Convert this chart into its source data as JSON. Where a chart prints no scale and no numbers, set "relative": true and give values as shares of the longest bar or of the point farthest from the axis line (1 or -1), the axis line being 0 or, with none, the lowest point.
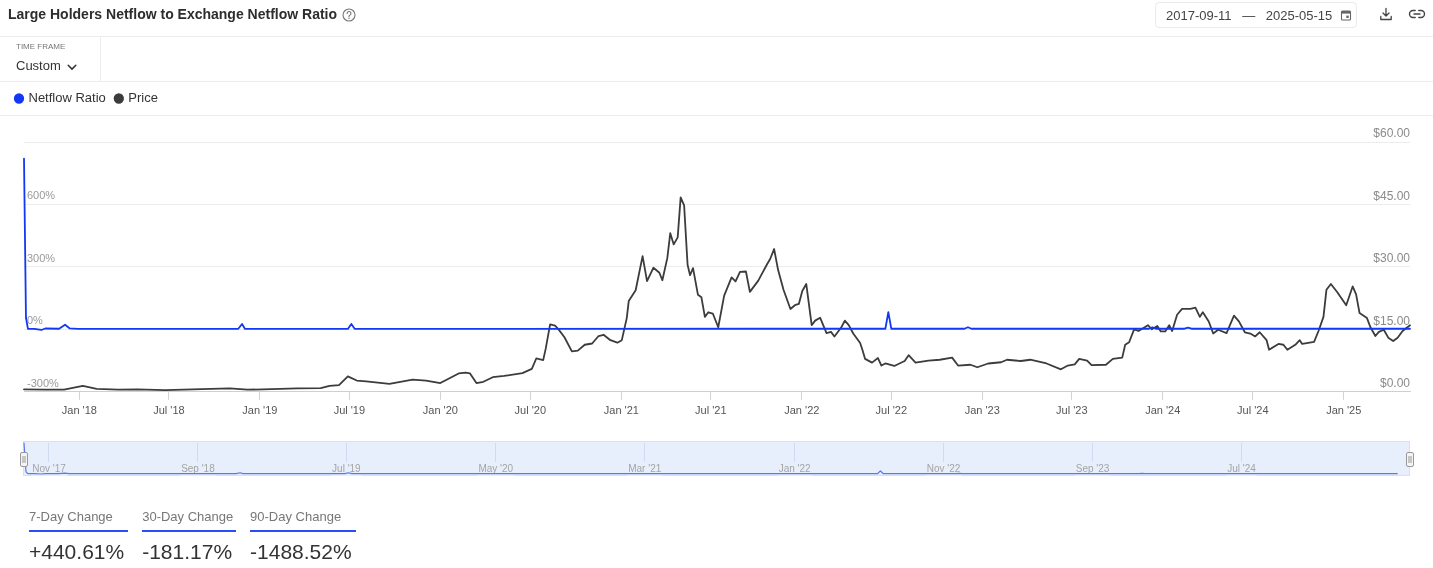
{
  "chart_data": [
    {
      "type": "line",
      "title": "Large Holders Netflow to Exchange Netflow Ratio",
      "annotations": [
        "TIME FRAME",
        "Custom",
        "2017-09-11 — 2025-05-15"
      ],
      "series": [
        {
          "name": "Netflow Ratio",
          "color": "#1238f5",
          "x": [
            "2017-09-11",
            "2017-09-15",
            "2017-09-19",
            "2017-10-02",
            "2017-10-16",
            "2017-10-24",
            "2017-11-21",
            "2017-12-03",
            "2017-12-12",
            "2017-12-29",
            "2018-11-18",
            "2018-11-26",
            "2018-12-02",
            "2019-06-28",
            "2019-07-05",
            "2019-07-12",
            "2022-06-19",
            "2022-06-25",
            "2022-07-01",
            "2022-11-26",
            "2022-12-03",
            "2022-12-10",
            "2023-12-04",
            "2023-12-11",
            "2023-12-18",
            "2024-02-14",
            "2024-02-21",
            "2024-02-28",
            "2025-05-15"
          ],
          "values": [
            820,
            55,
            2,
            2,
            -3,
            4,
            3,
            22,
            5,
            2,
            2,
            26,
            2,
            2,
            26,
            2,
            3,
            83,
            3,
            3,
            10,
            3,
            3,
            10,
            3,
            3,
            8,
            3,
            3
          ]
        },
        {
          "name": "Price",
          "color": "#3c3c3c",
          "axis": "y2",
          "x": [
            "2017-09-11",
            "2017-10-24",
            "2017-12-01",
            "2018-01-08",
            "2018-02-05",
            "2018-03-21",
            "2018-04-28",
            "2018-06-23",
            "2018-11-01",
            "2018-12-07",
            "2019-03-18",
            "2019-05-04",
            "2019-05-22",
            "2019-06-10",
            "2019-06-28",
            "2019-07-16",
            "2019-08-04",
            "2019-09-20",
            "2019-11-06",
            "2019-12-03",
            "2020-01-01",
            "2020-02-07",
            "2020-02-21",
            "2020-03-01",
            "2020-03-14",
            "2020-03-28",
            "2020-04-16",
            "2020-05-09",
            "2020-06-15",
            "2020-07-04",
            "2020-07-13",
            "2020-07-27",
            "2020-08-01",
            "2020-08-10",
            "2020-08-20",
            "2020-08-27",
            "2020-09-08",
            "2020-09-23",
            "2020-10-05",
            "2020-10-19",
            "2020-11-03",
            "2020-11-16",
            "2020-11-26",
            "2020-12-10",
            "2020-12-24",
            "2021-01-02",
            "2021-01-12",
            "2021-01-16",
            "2021-01-30",
            "2021-02-13",
            "2021-02-22",
            "2021-03-07",
            "2021-03-19",
            "2021-03-25",
            "2021-04-04",
            "2021-04-10",
            "2021-04-17",
            "2021-04-25",
            "2021-05-01",
            "2021-05-08",
            "2021-05-15",
            "2021-05-20",
            "2021-05-26",
            "2021-06-05",
            "2021-06-12",
            "2021-06-19",
            "2021-06-26",
            "2021-07-05",
            "2021-07-16",
            "2021-07-28",
            "2021-08-12",
            "2021-08-20",
            "2021-08-29",
            "2021-09-10",
            "2021-09-18",
            "2021-10-05",
            "2021-10-23",
            "2021-10-29",
            "2021-11-06",
            "2021-11-14",
            "2021-11-25",
            "2021-12-09",
            "2021-12-18",
            "2021-12-26",
            "2022-01-02",
            "2022-01-10",
            "2022-01-21",
            "2022-01-28",
            "2022-02-07",
            "2022-02-20",
            "2022-03-01",
            "2022-03-08",
            "2022-03-22",
            "2022-03-29",
            "2022-04-06",
            "2022-04-15",
            "2022-04-29",
            "2022-05-04",
            "2022-05-09",
            "2022-05-23",
            "2022-06-04",
            "2022-06-11",
            "2022-06-19",
            "2022-07-07",
            "2022-07-28",
            "2022-08-05",
            "2022-08-19",
            "2022-09-14",
            "2022-10-07",
            "2022-11-01",
            "2022-11-13",
            "2022-12-08",
            "2022-12-22",
            "2023-01-13",
            "2023-02-08",
            "2023-02-20",
            "2023-03-20",
            "2023-04-08",
            "2023-05-11",
            "2023-06-09",
            "2023-06-23",
            "2023-07-07",
            "2023-07-16",
            "2023-08-01",
            "2023-08-10",
            "2023-09-08",
            "2023-09-22",
            "2023-10-11",
            "2023-10-17",
            "2023-10-25",
            "2023-11-04",
            "2023-11-13",
            "2023-12-02",
            "2023-12-10",
            "2023-12-21",
            "2023-12-28",
            "2024-01-06",
            "2024-01-14",
            "2024-01-20",
            "2024-01-30",
            "2024-02-09",
            "2024-02-26",
            "2024-03-07",
            "2024-03-16",
            "2024-03-22",
            "2024-04-03",
            "2024-04-12",
            "2024-04-22",
            "2024-05-09",
            "2024-05-24",
            "2024-06-03",
            "2024-06-15",
            "2024-06-26",
            "2024-07-06",
            "2024-07-15",
            "2024-07-29",
            "2024-08-03",
            "2024-08-22",
            "2024-09-01",
            "2024-09-09",
            "2024-09-25",
            "2024-10-04",
            "2024-10-09",
            "2024-11-02",
            "2024-11-11",
            "2024-11-21",
            "2024-11-27",
            "2024-12-06",
            "2024-12-19",
            "2025-01-06",
            "2025-01-19",
            "2025-01-26",
            "2025-02-02",
            "2025-02-17",
            "2025-02-24",
            "2025-03-06",
            "2025-03-13",
            "2025-03-23",
            "2025-04-01",
            "2025-04-11",
            "2025-04-20",
            "2025-04-30",
            "2025-05-15"
          ],
          "values": [
            0.6,
            0.5,
            0.5,
            1.4,
            0.7,
            0.5,
            0.6,
            0.4,
            0.8,
            0.5,
            0.8,
            0.9,
            1.4,
            1.6,
            3.7,
            2.7,
            2.5,
            1.9,
            2.9,
            2.7,
            2.1,
            4.4,
            4.6,
            4.4,
            2.1,
            2.4,
            3.5,
            3.8,
            4.5,
            5.5,
            8.0,
            7.6,
            10.3,
            16.2,
            15.9,
            15.0,
            13.1,
            9.7,
            9.9,
            11.3,
            11.6,
            13.4,
            13.7,
            12.4,
            11.8,
            12.4,
            17.7,
            21.8,
            24.4,
            32.6,
            26.6,
            29.8,
            28.6,
            26.8,
            32.1,
            38.1,
            35.4,
            37.1,
            46.7,
            44.8,
            30.5,
            28.0,
            29.7,
            23.3,
            22.7,
            18.0,
            19.1,
            18.8,
            15.5,
            23.1,
            27.5,
            26.5,
            28.8,
            28.9,
            24.0,
            26.7,
            30.7,
            31.9,
            34.3,
            29.3,
            24.5,
            19.9,
            20.8,
            21.1,
            24.2,
            25.9,
            16.0,
            17.1,
            17.8,
            14.1,
            14.4,
            13.3,
            15.5,
            17.1,
            16.0,
            14.0,
            11.7,
            9.9,
            7.9,
            7.0,
            8.1,
            6.3,
            6.8,
            6.2,
            7.4,
            8.8,
            7.0,
            7.5,
            7.7,
            8.2,
            6.3,
            6.5,
            5.9,
            6.8,
            7.1,
            7.7,
            7.4,
            7.7,
            6.8,
            5.4,
            6.3,
            6.6,
            7.9,
            7.5,
            6.4,
            6.5,
            7.9,
            8.2,
            11.3,
            11.9,
            15.0,
            14.6,
            16.0,
            15.0,
            15.8,
            14.5,
            14.5,
            16.0,
            14.6,
            18.5,
            19.9,
            19.9,
            20.2,
            18.0,
            19.1,
            16.9,
            14.0,
            14.9,
            14.1,
            18.3,
            16.9,
            14.3,
            14.0,
            13.3,
            14.3,
            12.4,
            10.1,
            11.5,
            11.3,
            10.1,
            11.3,
            12.4,
            11.5,
            12.0,
            14.6,
            18.0,
            24.5,
            25.9,
            23.9,
            20.8,
            25.3,
            23.4,
            18.9,
            17.7,
            15.5,
            13.4,
            14.4,
            14.9,
            13.0,
            12.2,
            13.0,
            14.6,
            16.0
          ]
        }
      ],
      "xlim": [
        "2017-09-11",
        "2025-05-15"
      ],
      "xticks": [
        {
          "value": "2018-01-01",
          "label": "Jan '18"
        },
        {
          "value": "2018-07-01",
          "label": "Jul '18"
        },
        {
          "value": "2019-01-01",
          "label": "Jan '19"
        },
        {
          "value": "2019-07-01",
          "label": "Jul '19"
        },
        {
          "value": "2020-01-01",
          "label": "Jan '20"
        },
        {
          "value": "2020-07-01",
          "label": "Jul '20"
        },
        {
          "value": "2021-01-01",
          "label": "Jan '21"
        },
        {
          "value": "2021-07-01",
          "label": "Jul '21"
        },
        {
          "value": "2022-01-01",
          "label": "Jan '22"
        },
        {
          "value": "2022-07-01",
          "label": "Jul '22"
        },
        {
          "value": "2023-01-01",
          "label": "Jan '23"
        },
        {
          "value": "2023-07-01",
          "label": "Jul '23"
        },
        {
          "value": "2024-01-01",
          "label": "Jan '24"
        },
        {
          "value": "2024-07-01",
          "label": "Jul '24"
        },
        {
          "value": "2025-01-01",
          "label": "Jan '25"
        }
      ],
      "ylim": [
        -300,
        900
      ],
      "yticks": [
        {
          "value": -300,
          "label": "-300%"
        },
        {
          "value": 0,
          "label": "0%"
        },
        {
          "value": 300,
          "label": "300%"
        },
        {
          "value": 600,
          "label": "600%"
        },
        {
          "value": 900,
          "label": null
        }
      ],
      "y2lim": [
        0,
        60
      ],
      "y2ticks": [
        {
          "value": 0,
          "label": "$0.00"
        },
        {
          "value": 15,
          "label": "$15.00"
        },
        {
          "value": 30,
          "label": "$30.00"
        },
        {
          "value": 45,
          "label": "$45.00"
        },
        {
          "value": 60,
          "label": "$60.00"
        }
      ],
      "grid": "y",
      "legend": "top left",
      "marker": "none"
    },
    {
      "type": "line",
      "relative": true,
      "series": [
        {
          "color": "#5a78f0",
          "x": [
            "2017-09-11",
            "2017-09-15",
            "2017-09-19",
            "2017-10-02",
            "2017-10-16",
            "2017-10-24",
            "2017-11-21",
            "2017-12-03",
            "2017-12-12",
            "2017-12-29",
            "2018-11-18",
            "2018-11-26",
            "2018-12-02",
            "2019-06-28",
            "2019-07-05",
            "2019-07-12",
            "2022-06-19",
            "2022-06-25",
            "2022-07-01",
            "2022-11-26",
            "2022-12-03",
            "2022-12-10",
            "2023-12-04",
            "2023-12-11",
            "2023-12-18",
            "2024-02-14",
            "2024-02-21",
            "2024-02-28",
            "2025-05-15"
          ],
          "values": [
            1,
            0.07,
            0.01,
            0.01,
            0,
            0.01,
            0.01,
            0.03,
            0.01,
            0.01,
            0.01,
            0.04,
            0.01,
            0.01,
            0.04,
            0.01,
            0.01,
            0.1,
            0.01,
            0.01,
            0.02,
            0.01,
            0.01,
            0.02,
            0.01,
            0.01,
            0.01,
            0.01,
            0.01
          ]
        }
      ],
      "xlim": [
        "2017-09-11",
        "2025-06-10"
      ],
      "xticks": [
        {
          "value": "2017-11-01",
          "label": "Nov '17"
        },
        {
          "value": "2018-09-01",
          "label": "Sep '18"
        },
        {
          "value": "2019-07-01",
          "label": "Jul '19"
        },
        {
          "value": "2020-05-01",
          "label": "May '20"
        },
        {
          "value": "2021-03-01",
          "label": "Mar '21"
        },
        {
          "value": "2022-01-01",
          "label": "Jan '22"
        },
        {
          "value": "2022-11-01",
          "label": "Nov '22"
        },
        {
          "value": "2023-09-01",
          "label": "Sep '23"
        },
        {
          "value": "2024-07-01",
          "label": "Jul '24"
        }
      ],
      "tick_labels": "x",
      "grid": "x",
      "marker": "none"
    },
    {
      "type": "other",
      "annotations": [
        "7-Day Change",
        "+440.61%",
        "30-Day Change",
        "-181.17%",
        "90-Day Change",
        "-1488.52%"
      ]
    }
  ]
}
